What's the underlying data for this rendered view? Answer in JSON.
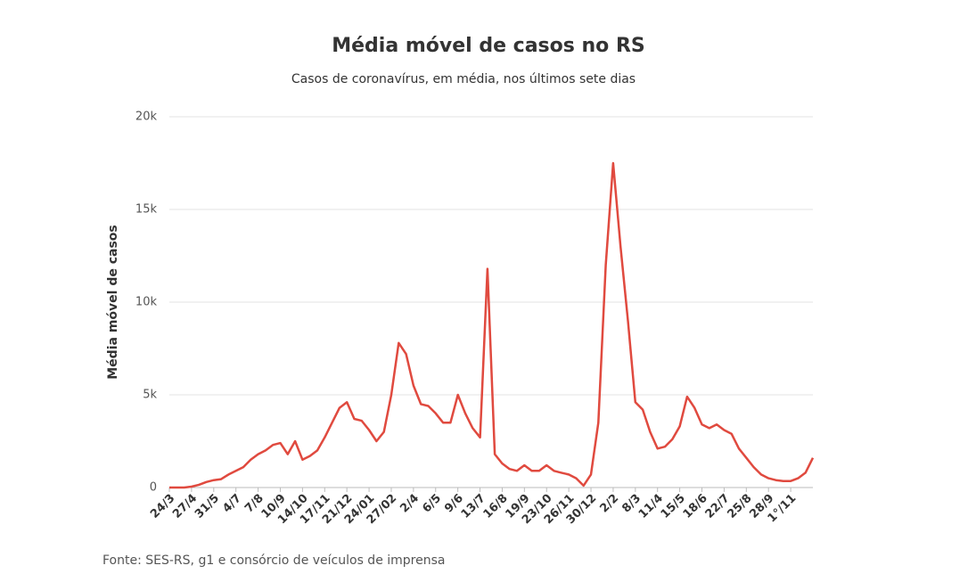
{
  "chart_data": {
    "type": "line",
    "title": "Média móvel de casos no RS",
    "subtitle": "Casos de coronavírus, em média, nos últimos sete dias",
    "y_label": "Média móvel de casos",
    "source": "Fonte: SES-RS, g1 e consórcio de veículos de imprensa",
    "categories": [
      "24/3",
      null,
      null,
      "27/4",
      null,
      null,
      "31/5",
      null,
      null,
      "4/7",
      null,
      null,
      "7/8",
      null,
      null,
      "10/9",
      null,
      null,
      "14/10",
      null,
      null,
      "17/11",
      null,
      null,
      "21/12",
      null,
      null,
      "24/01",
      null,
      null,
      "27/02",
      null,
      null,
      "2/4",
      null,
      null,
      "6/5",
      null,
      null,
      "9/6",
      null,
      null,
      "13/7",
      null,
      null,
      "16/8",
      null,
      null,
      "19/9",
      null,
      null,
      "23/10",
      null,
      null,
      "26/11",
      null,
      null,
      "30/12",
      null,
      null,
      "2/2",
      null,
      null,
      "8/3",
      null,
      null,
      "11/4",
      null,
      null,
      "15/5",
      null,
      null,
      "18/6",
      null,
      null,
      "22/7",
      null,
      null,
      "25/8",
      null,
      null,
      "28/9",
      null,
      null,
      "1°/11",
      null,
      null,
      null
    ],
    "series": [
      {
        "name": "Média móvel de casos",
        "color": "#e04a3f",
        "values": [
          0,
          0,
          0,
          50,
          150,
          300,
          400,
          450,
          700,
          900,
          1100,
          1500,
          1800,
          2000,
          2300,
          2400,
          1800,
          2500,
          1500,
          1700,
          2000,
          2700,
          3500,
          4300,
          4600,
          3700,
          3600,
          3100,
          2500,
          3000,
          5000,
          7800,
          7200,
          5500,
          4500,
          4400,
          4000,
          3500,
          3500,
          5000,
          4000,
          3200,
          2700,
          11800,
          1800,
          1300,
          1000,
          900,
          1200,
          900,
          900,
          1200,
          900,
          800,
          700,
          500,
          100,
          700,
          3500,
          12000,
          17500,
          13000,
          9000,
          4600,
          4200,
          3000,
          2100,
          2200,
          2600,
          3300,
          4900,
          4300,
          3400,
          3200,
          3400,
          3100,
          2900,
          2100,
          1600,
          1100,
          700,
          500,
          400,
          350,
          350,
          500,
          800,
          1600
        ]
      }
    ],
    "ylim": [
      0,
      20000
    ],
    "yticks": [
      0,
      {
        "value": 5000,
        "label": "5k"
      },
      {
        "value": 10000,
        "label": "10k"
      },
      {
        "value": 15000,
        "label": "15k"
      },
      {
        "value": 20000,
        "label": "20k"
      }
    ],
    "grid": true
  }
}
